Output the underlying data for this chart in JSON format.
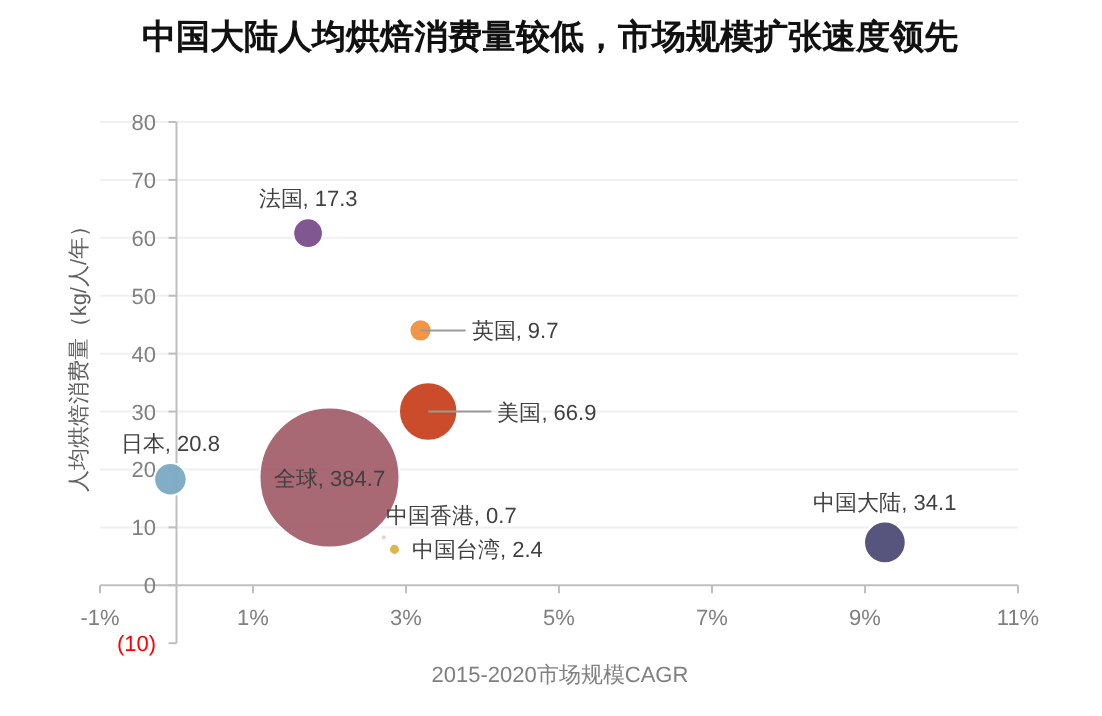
{
  "chart_data": {
    "type": "bubble",
    "title": "中国大陆人均烘焙消费量较低，市场规模扩张速度领先",
    "xlabel": "2015-2020市场规模CAGR",
    "ylabel": "人均烘焙消费量（kg/人/年）",
    "series": [
      {
        "color": "#7b4f8c",
        "x": [
          1.72
        ],
        "values": [
          60.8
        ],
        "sizes": [
          0.045
        ]
      },
      {
        "color": "#f0913a",
        "x": [
          3.19
        ],
        "values": [
          44
        ],
        "sizes": [
          0.0252
        ]
      },
      {
        "color": "#c9431f",
        "x": [
          3.29
        ],
        "values": [
          30
        ],
        "sizes": [
          0.1739
        ]
      },
      {
        "color": "#7baac4",
        "x": [
          -0.08
        ],
        "values": [
          18.3
        ],
        "sizes": [
          0.0541
        ]
      },
      {
        "color": "#a4606d",
        "x": [
          2.0
        ],
        "values": [
          18.6
        ],
        "sizes": [
          1
        ]
      },
      {
        "color": "#f6c9b8",
        "x": [
          2.71
        ],
        "values": [
          8.3
        ],
        "sizes": [
          0.0018
        ]
      },
      {
        "color": "#dcb440",
        "x": [
          2.85
        ],
        "values": [
          6.2
        ],
        "sizes": [
          0.0062
        ]
      },
      {
        "color": "#4f4b78",
        "x": [
          9.26
        ],
        "values": [
          7.4
        ],
        "sizes": [
          0.0886
        ]
      }
    ],
    "annotations": [
      {
        "text": "法国, 17.3",
        "x": 1.72,
        "y": 60.8
      },
      {
        "text": "英国, 9.7",
        "x": 3.19,
        "y": 44
      },
      {
        "text": "美国, 66.9",
        "x": 3.29,
        "y": 30
      },
      {
        "text": "日本, 20.8",
        "x": -0.08,
        "y": 18.3
      },
      {
        "text": "全球, 384.7",
        "x": 2.0,
        "y": 18.6
      },
      {
        "text": "中国香港, 0.7",
        "x": 2.71,
        "y": 8.3
      },
      {
        "text": "中国台湾, 2.4",
        "x": 2.85,
        "y": 6.2
      },
      {
        "text": "中国大陆, 34.1",
        "x": 9.26,
        "y": 7.4
      }
    ],
    "xlim": [
      -1,
      11
    ],
    "xticks": [
      {
        "value": -1,
        "label": "-1%"
      },
      {
        "value": 1,
        "label": "1%"
      },
      {
        "value": 3,
        "label": "3%"
      },
      {
        "value": 5,
        "label": "5%"
      },
      {
        "value": 7,
        "label": "7%"
      },
      {
        "value": 9,
        "label": "9%"
      },
      {
        "value": 11,
        "label": "11%"
      }
    ],
    "ylim": [
      -10,
      80
    ],
    "yticks": [
      {
        "value": -10,
        "label": "(10)"
      },
      0,
      10,
      20,
      30,
      40,
      50,
      60,
      70,
      80
    ],
    "grid": "y"
  }
}
